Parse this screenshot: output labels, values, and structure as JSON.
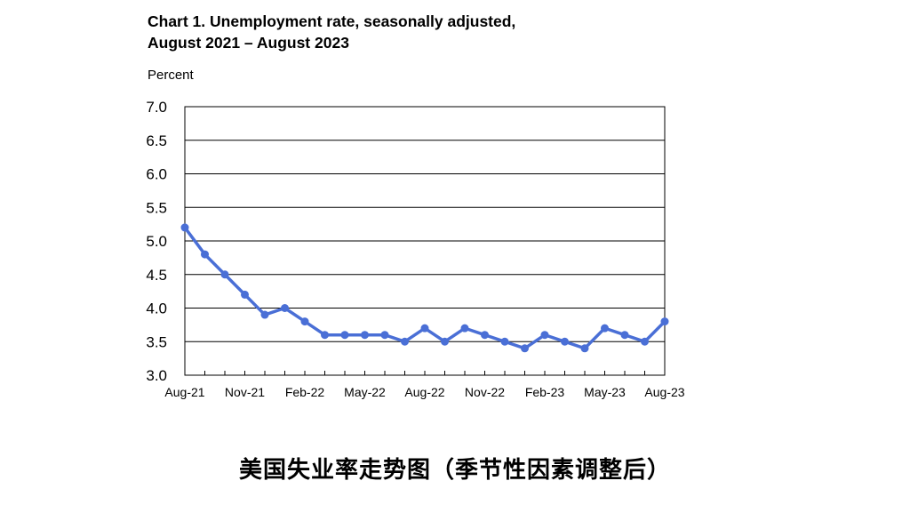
{
  "title_line1": "Chart 1. Unemployment rate, seasonally adjusted,",
  "title_line2": "August 2021 – August 2023",
  "caption": "美国失业率走势图（季节性因素调整后）",
  "chart_data": {
    "type": "line",
    "title": "Chart 1. Unemployment rate, seasonally adjusted, August 2021 – August 2023",
    "ylabel": "Percent",
    "xlabel": "",
    "ylim": [
      3.0,
      7.0
    ],
    "yticks": [
      "7.0",
      "6.5",
      "6.0",
      "5.5",
      "5.0",
      "4.5",
      "4.0",
      "3.5",
      "3.0"
    ],
    "xtick_labels": [
      "Aug-21",
      "Nov-21",
      "Feb-22",
      "May-22",
      "Aug-22",
      "Nov-22",
      "Feb-23",
      "May-23",
      "Aug-23"
    ],
    "grid": true,
    "line_color": "#4a6fd6",
    "x": [
      "Aug-21",
      "Sep-21",
      "Oct-21",
      "Nov-21",
      "Dec-21",
      "Jan-22",
      "Feb-22",
      "Mar-22",
      "Apr-22",
      "May-22",
      "Jun-22",
      "Jul-22",
      "Aug-22",
      "Sep-22",
      "Oct-22",
      "Nov-22",
      "Dec-22",
      "Jan-23",
      "Feb-23",
      "Mar-23",
      "Apr-23",
      "May-23",
      "Jun-23",
      "Jul-23",
      "Aug-23"
    ],
    "values": [
      5.2,
      4.8,
      4.5,
      4.2,
      3.9,
      4.0,
      3.8,
      3.6,
      3.6,
      3.6,
      3.6,
      3.5,
      3.7,
      3.5,
      3.7,
      3.6,
      3.5,
      3.4,
      3.6,
      3.5,
      3.4,
      3.7,
      3.6,
      3.5,
      3.8
    ]
  }
}
